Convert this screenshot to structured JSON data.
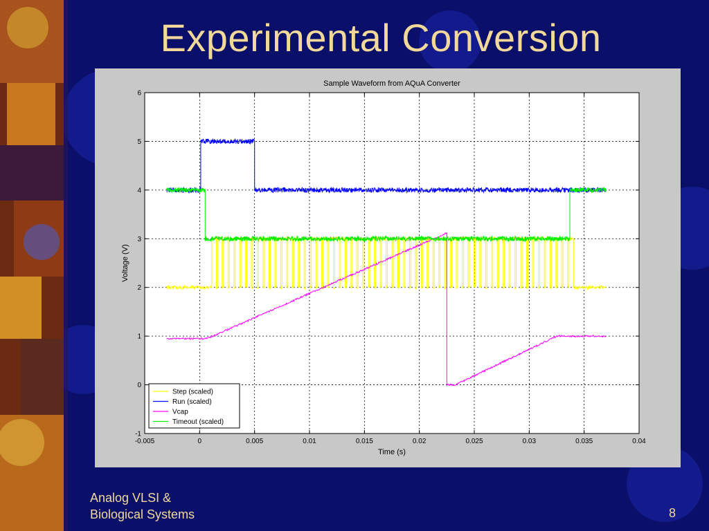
{
  "slide": {
    "title": "Experimental Conversion",
    "footer_line1": "Analog VLSI &",
    "footer_line2": "Biological Systems",
    "page_number": "8"
  },
  "colors": {
    "background": "#0a0f6a",
    "title_text": "#f2d99a",
    "figure_background": "#c8c8c8"
  },
  "chart_data": {
    "type": "line",
    "title": "Sample Waveform from AQuA Converter",
    "xlabel": "Time (s)",
    "ylabel": "Voltage (V)",
    "xlim": [
      -0.005,
      0.04
    ],
    "ylim": [
      -1,
      6
    ],
    "xticks": [
      -0.005,
      0,
      0.005,
      0.01,
      0.015,
      0.02,
      0.025,
      0.03,
      0.035,
      0.04
    ],
    "xtick_labels": [
      "-0.005",
      "0",
      "0.005",
      "0.01",
      "0.015",
      "0.02",
      "0.025",
      "0.03",
      "0.035",
      "0.04"
    ],
    "yticks": [
      -1,
      0,
      1,
      2,
      3,
      4,
      5,
      6
    ],
    "ytick_labels": [
      "-1",
      "0",
      "1",
      "2",
      "3",
      "4",
      "5",
      "6"
    ],
    "grid": true,
    "legend_position": "bottom-left",
    "series": [
      {
        "name": "Step (scaled)",
        "color": "#ffff00",
        "x": [
          -0.003,
          0.0011,
          0.0011,
          0.0337,
          0.0337,
          0.037
        ],
        "y": [
          2,
          2,
          3,
          3,
          2,
          2
        ],
        "pulses": {
          "start": 0.0011,
          "end": 0.0337,
          "period": 0.000533,
          "low": 2,
          "high": 3
        }
      },
      {
        "name": "Run (scaled)",
        "color": "#0000ff",
        "x": [
          -0.003,
          0.0001,
          0.0001,
          0.005,
          0.005,
          0.037
        ],
        "y": [
          4,
          4,
          5,
          5,
          4,
          4
        ]
      },
      {
        "name": "Vcap",
        "color": "#ff00ff",
        "x": [
          -0.003,
          0.0005,
          0.0011,
          0.0225,
          0.0225,
          0.0233,
          0.0325,
          0.037
        ],
        "y": [
          0.95,
          0.95,
          0.99,
          3.12,
          0.0,
          0.0,
          1.0,
          1.0
        ]
      },
      {
        "name": "Timeout (scaled)",
        "color": "#00ee00",
        "x": [
          -0.003,
          0.0005,
          0.0005,
          0.0337,
          0.0337,
          0.037
        ],
        "y": [
          4,
          4,
          3,
          3,
          4,
          4
        ]
      }
    ]
  }
}
